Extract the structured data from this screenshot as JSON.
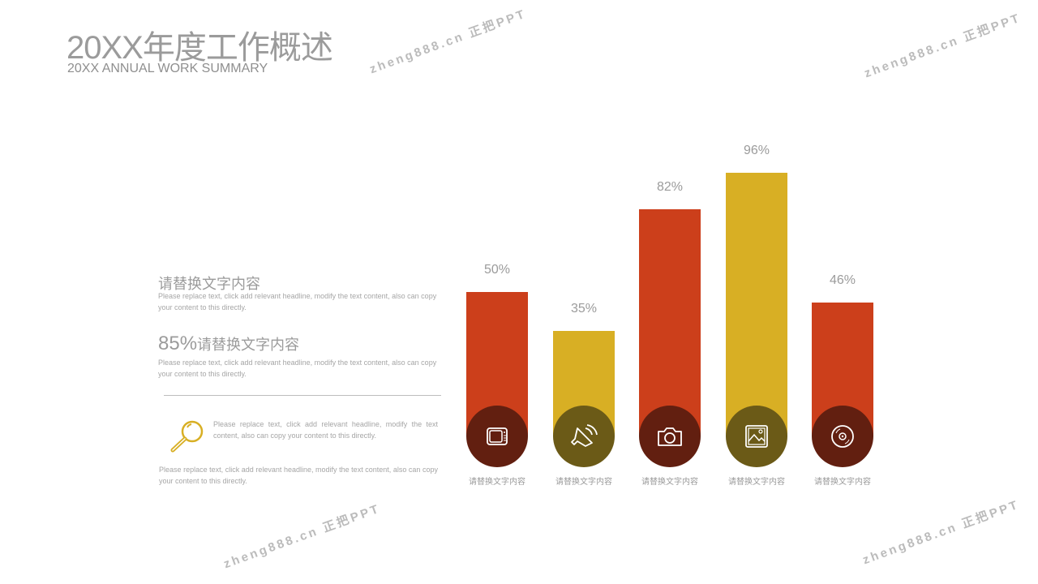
{
  "header": {
    "title": "20XX年度工作概述",
    "subtitle": "20XX ANNUAL WORK SUMMARY"
  },
  "left": {
    "block1": {
      "heading": "请替换文字内容",
      "text": "Please replace text, click add relevant headline, modify the text content, also can copy your content to this directly."
    },
    "block2": {
      "percent": "85%",
      "heading": "请替换文字内容",
      "text": "Please replace text, click add relevant headline, modify the text content, also can copy your content to this directly."
    },
    "block3": {
      "icon": "magnifier-icon",
      "text": "Please replace text, click add relevant headline, modify the text content, also can copy your content to this directly."
    },
    "block4": {
      "text": "Please replace text, click add relevant headline, modify the text content, also can copy your content to this directly."
    }
  },
  "colors": {
    "red": "#CC3F1B",
    "yellow": "#D8AF24",
    "dark_red": "#621F10",
    "olive": "#6B5A17",
    "accent_icon": "#D8AF24"
  },
  "chart_data": {
    "type": "bar",
    "categories": [
      "请替换文字内容",
      "请替换文字内容",
      "请替换文字内容",
      "请替换文字内容",
      "请替换文字内容"
    ],
    "values": [
      50,
      35,
      82,
      96,
      46
    ],
    "labels": [
      "50%",
      "35%",
      "82%",
      "96%",
      "46%"
    ],
    "icons": [
      "tv-icon",
      "speaker-icon",
      "camera-icon",
      "picture-icon",
      "disc-icon"
    ],
    "bar_colors": [
      "#CC3F1B",
      "#D8AF24",
      "#CC3F1B",
      "#D8AF24",
      "#CC3F1B"
    ],
    "circle_colors": [
      "#621F10",
      "#6B5A17",
      "#621F10",
      "#6B5A17",
      "#621F10"
    ]
  },
  "watermark": "zheng888.cn 正把PPT"
}
